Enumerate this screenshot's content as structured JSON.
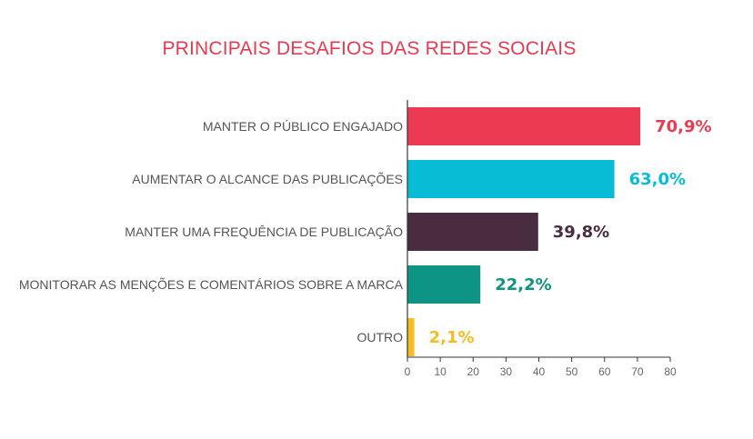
{
  "chart_data": {
    "type": "bar",
    "orientation": "horizontal",
    "title": "PRINCIPAIS DESAFIOS DAS REDES SOCIAIS",
    "categories": [
      "MANTER O PÚBLICO ENGAJADO",
      "AUMENTAR O ALCANCE DAS PUBLICAÇÕES",
      "MANTER UMA FREQUÊNCIA DE PUBLICAÇÃO",
      "MONITORAR AS MENÇÕES E COMENTÁRIOS SOBRE A MARCA",
      "OUTRO"
    ],
    "values": [
      70.9,
      63.0,
      39.8,
      22.2,
      2.1
    ],
    "value_labels": [
      "70,9%",
      "63,0%",
      "39,8%",
      "22,2%",
      "2,1%"
    ],
    "colors": [
      "#ec3a52",
      "#08bcd6",
      "#4a2c40",
      "#0e9484",
      "#f5bd21"
    ],
    "xlim": [
      0,
      80
    ],
    "xticks": [
      0,
      10,
      20,
      30,
      40,
      50,
      60,
      70,
      80
    ],
    "grid": false,
    "legend": "none"
  }
}
